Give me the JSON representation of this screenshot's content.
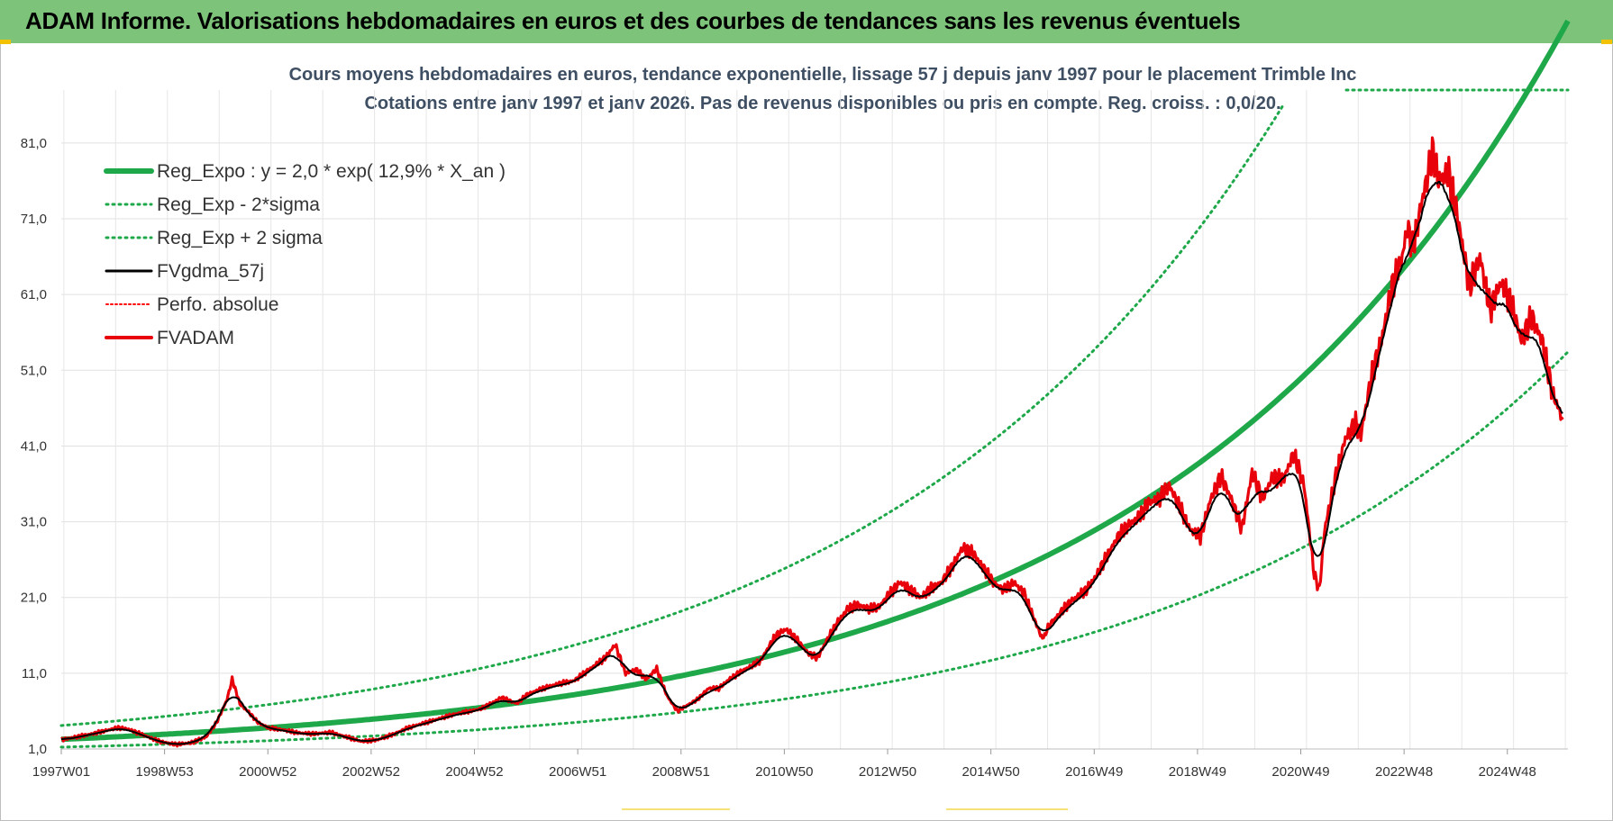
{
  "header": {
    "title": "ADAM Informe. Valorisations hebdomadaires en euros et des courbes de tendances sans les revenus éventuels"
  },
  "colors": {
    "banner": "#7dc47a",
    "reg_expo": "#1fa84a",
    "sigma": "#1fa84a",
    "gdma": "#000000",
    "perfo": "#ff0000",
    "fvadam": "#e8000b",
    "grid": "#e3e3e3"
  },
  "chart_data": {
    "type": "line",
    "title": "Cours moyens hebdomadaires en euros, tendance exponentielle, lissage 57 j depuis janv 1997  pour le placement Trimble Inc",
    "subtitle": "Cotations entre janv 1997 et janv 2026. Pas de revenus disponibles ou pris en compte. Reg. croiss. : 0,0/20.",
    "xlabel": "",
    "ylabel": "",
    "ylim": [
      1.0,
      88.0
    ],
    "xlim": [
      1997.0,
      2026.1
    ],
    "y_ticks": [
      "1,0",
      "11,0",
      "21,0",
      "31,0",
      "41,0",
      "51,0",
      "61,0",
      "71,0",
      "81,0"
    ],
    "x_tick_labels": [
      "1997W01",
      "1998W53",
      "2000W52",
      "2002W52",
      "2004W52",
      "2006W51",
      "2008W51",
      "2010W50",
      "2012W50",
      "2014W50",
      "2016W49",
      "2018W49",
      "2020W49",
      "2022W48",
      "2024W48"
    ],
    "legend_position": "top-left",
    "grid": true,
    "regression": {
      "a": 2.0,
      "rate": 0.129,
      "x0": 1996.0,
      "sigma_factor_low": 0.55,
      "sigma_factor_high": 1.8
    },
    "series": [
      {
        "name": "Reg_Expo : y = 2,0 * exp( 12,9% *  X_an )",
        "style": "solid-thick",
        "color": "#1fa84a"
      },
      {
        "name": "Reg_Exp - 2*sigma",
        "style": "dotted",
        "color": "#1fa84a"
      },
      {
        "name": "Reg_Exp + 2 sigma",
        "style": "dotted",
        "color": "#1fa84a"
      },
      {
        "name": "FVgdma_57j",
        "style": "solid-thin",
        "color": "#000000"
      },
      {
        "name": "Perfo. absolue",
        "style": "dotted-thin",
        "color": "#ff0000"
      },
      {
        "name": "FVADAM",
        "style": "solid-medium",
        "color": "#e8000b",
        "points": [
          [
            1997.0,
            2.2
          ],
          [
            1997.3,
            2.6
          ],
          [
            1997.6,
            3.0
          ],
          [
            1997.9,
            3.5
          ],
          [
            1998.1,
            3.8
          ],
          [
            1998.3,
            3.6
          ],
          [
            1998.6,
            2.8
          ],
          [
            1998.9,
            2.0
          ],
          [
            1999.2,
            1.6
          ],
          [
            1999.5,
            1.8
          ],
          [
            1999.8,
            2.6
          ],
          [
            2000.0,
            4.5
          ],
          [
            2000.2,
            7.5
          ],
          [
            2000.3,
            10.2
          ],
          [
            2000.45,
            7.0
          ],
          [
            2000.6,
            6.0
          ],
          [
            2000.8,
            4.5
          ],
          [
            2001.0,
            3.8
          ],
          [
            2001.3,
            3.5
          ],
          [
            2001.6,
            3.1
          ],
          [
            2001.9,
            3.0
          ],
          [
            2002.2,
            3.2
          ],
          [
            2002.5,
            2.6
          ],
          [
            2002.8,
            2.0
          ],
          [
            2003.1,
            2.2
          ],
          [
            2003.4,
            2.9
          ],
          [
            2003.7,
            3.8
          ],
          [
            2004.0,
            4.4
          ],
          [
            2004.3,
            5.0
          ],
          [
            2004.6,
            5.6
          ],
          [
            2004.9,
            6.0
          ],
          [
            2005.1,
            6.3
          ],
          [
            2005.3,
            7.0
          ],
          [
            2005.5,
            7.8
          ],
          [
            2005.8,
            7.0
          ],
          [
            2006.0,
            8.2
          ],
          [
            2006.3,
            9.0
          ],
          [
            2006.6,
            9.6
          ],
          [
            2006.9,
            10.0
          ],
          [
            2007.2,
            11.5
          ],
          [
            2007.5,
            13.0
          ],
          [
            2007.7,
            14.8
          ],
          [
            2007.9,
            11.0
          ],
          [
            2008.1,
            11.5
          ],
          [
            2008.3,
            10.2
          ],
          [
            2008.5,
            11.6
          ],
          [
            2008.7,
            8.0
          ],
          [
            2008.9,
            6.0
          ],
          [
            2009.1,
            6.8
          ],
          [
            2009.3,
            7.6
          ],
          [
            2009.5,
            9.0
          ],
          [
            2009.7,
            9.0
          ],
          [
            2009.9,
            10.2
          ],
          [
            2010.2,
            11.5
          ],
          [
            2010.5,
            12.6
          ],
          [
            2010.8,
            16.0
          ],
          [
            2011.0,
            16.8
          ],
          [
            2011.2,
            15.5
          ],
          [
            2011.4,
            13.8
          ],
          [
            2011.6,
            13.0
          ],
          [
            2011.8,
            15.5
          ],
          [
            2012.0,
            17.8
          ],
          [
            2012.2,
            19.6
          ],
          [
            2012.4,
            20.0
          ],
          [
            2012.6,
            19.5
          ],
          [
            2012.8,
            19.8
          ],
          [
            2013.0,
            21.5
          ],
          [
            2013.2,
            23.0
          ],
          [
            2013.4,
            22.0
          ],
          [
            2013.6,
            21.0
          ],
          [
            2013.8,
            22.2
          ],
          [
            2014.0,
            23.0
          ],
          [
            2014.2,
            25.0
          ],
          [
            2014.4,
            27.5
          ],
          [
            2014.6,
            27.0
          ],
          [
            2014.8,
            25.0
          ],
          [
            2015.0,
            23.0
          ],
          [
            2015.2,
            22.0
          ],
          [
            2015.4,
            23.0
          ],
          [
            2015.6,
            21.5
          ],
          [
            2015.8,
            18.0
          ],
          [
            2015.95,
            15.5
          ],
          [
            2016.1,
            17.5
          ],
          [
            2016.3,
            19.0
          ],
          [
            2016.5,
            20.5
          ],
          [
            2016.8,
            22.0
          ],
          [
            2017.0,
            24.0
          ],
          [
            2017.2,
            26.5
          ],
          [
            2017.4,
            29.0
          ],
          [
            2017.6,
            30.5
          ],
          [
            2017.8,
            31.5
          ],
          [
            2018.0,
            33.5
          ],
          [
            2018.2,
            34.0
          ],
          [
            2018.4,
            35.8
          ],
          [
            2018.6,
            33.0
          ],
          [
            2018.8,
            30.0
          ],
          [
            2019.0,
            29.0
          ],
          [
            2019.2,
            34.0
          ],
          [
            2019.4,
            37.0
          ],
          [
            2019.6,
            34.0
          ],
          [
            2019.8,
            30.0
          ],
          [
            2020.0,
            37.5
          ],
          [
            2020.2,
            34.0
          ],
          [
            2020.4,
            37.0
          ],
          [
            2020.6,
            36.5
          ],
          [
            2020.8,
            40.0
          ],
          [
            2021.0,
            36.0
          ],
          [
            2021.1,
            30.0
          ],
          [
            2021.2,
            24.0
          ],
          [
            2021.3,
            22.0
          ],
          [
            2021.4,
            30.0
          ],
          [
            2021.6,
            36.5
          ],
          [
            2021.8,
            42.0
          ],
          [
            2022.0,
            44.0
          ],
          [
            2022.1,
            42.5
          ],
          [
            2022.3,
            50.0
          ],
          [
            2022.5,
            55.0
          ],
          [
            2022.7,
            62.0
          ],
          [
            2022.9,
            66.0
          ],
          [
            2023.0,
            70.0
          ],
          [
            2023.1,
            67.0
          ],
          [
            2023.3,
            74.0
          ],
          [
            2023.5,
            80.0
          ],
          [
            2023.6,
            76.0
          ],
          [
            2023.8,
            77.0
          ],
          [
            2024.0,
            70.0
          ],
          [
            2024.2,
            62.0
          ],
          [
            2024.4,
            66.0
          ],
          [
            2024.6,
            59.0
          ],
          [
            2024.8,
            62.5
          ],
          [
            2025.0,
            60.0
          ],
          [
            2025.2,
            55.0
          ],
          [
            2025.4,
            58.0
          ],
          [
            2025.6,
            55.0
          ],
          [
            2025.8,
            48.0
          ],
          [
            2026.0,
            44.5
          ]
        ]
      }
    ]
  }
}
